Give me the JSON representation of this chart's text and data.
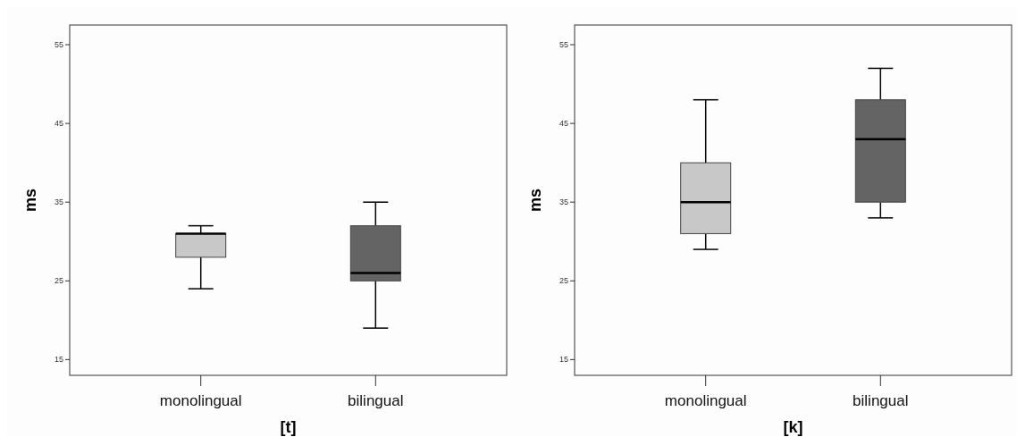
{
  "chart_data": [
    {
      "type": "box",
      "xlabel": "[t]",
      "ylabel": "ms",
      "categories": [
        "monolingual",
        "bilingual"
      ],
      "colors": [
        "#c8c8c8",
        "#646464"
      ],
      "boxes": [
        {
          "low": 24,
          "q1": 28,
          "median": 31,
          "q3": 31,
          "high": 32
        },
        {
          "low": 19,
          "q1": 25,
          "median": 26,
          "q3": 32,
          "high": 35
        }
      ],
      "ylim": [
        13,
        57.5
      ],
      "yticks": [
        15,
        25,
        35,
        45,
        55
      ],
      "grid": false
    },
    {
      "type": "box",
      "xlabel": "[k]",
      "ylabel": "ms",
      "categories": [
        "monolingual",
        "bilingual"
      ],
      "colors": [
        "#c8c8c8",
        "#646464"
      ],
      "boxes": [
        {
          "low": 29,
          "q1": 31,
          "median": 35,
          "q3": 40,
          "high": 48
        },
        {
          "low": 33,
          "q1": 35,
          "median": 43,
          "q3": 48,
          "high": 52
        }
      ],
      "ylim": [
        13,
        57.5
      ],
      "yticks": [
        15,
        25,
        35,
        45,
        55
      ],
      "grid": false
    }
  ]
}
